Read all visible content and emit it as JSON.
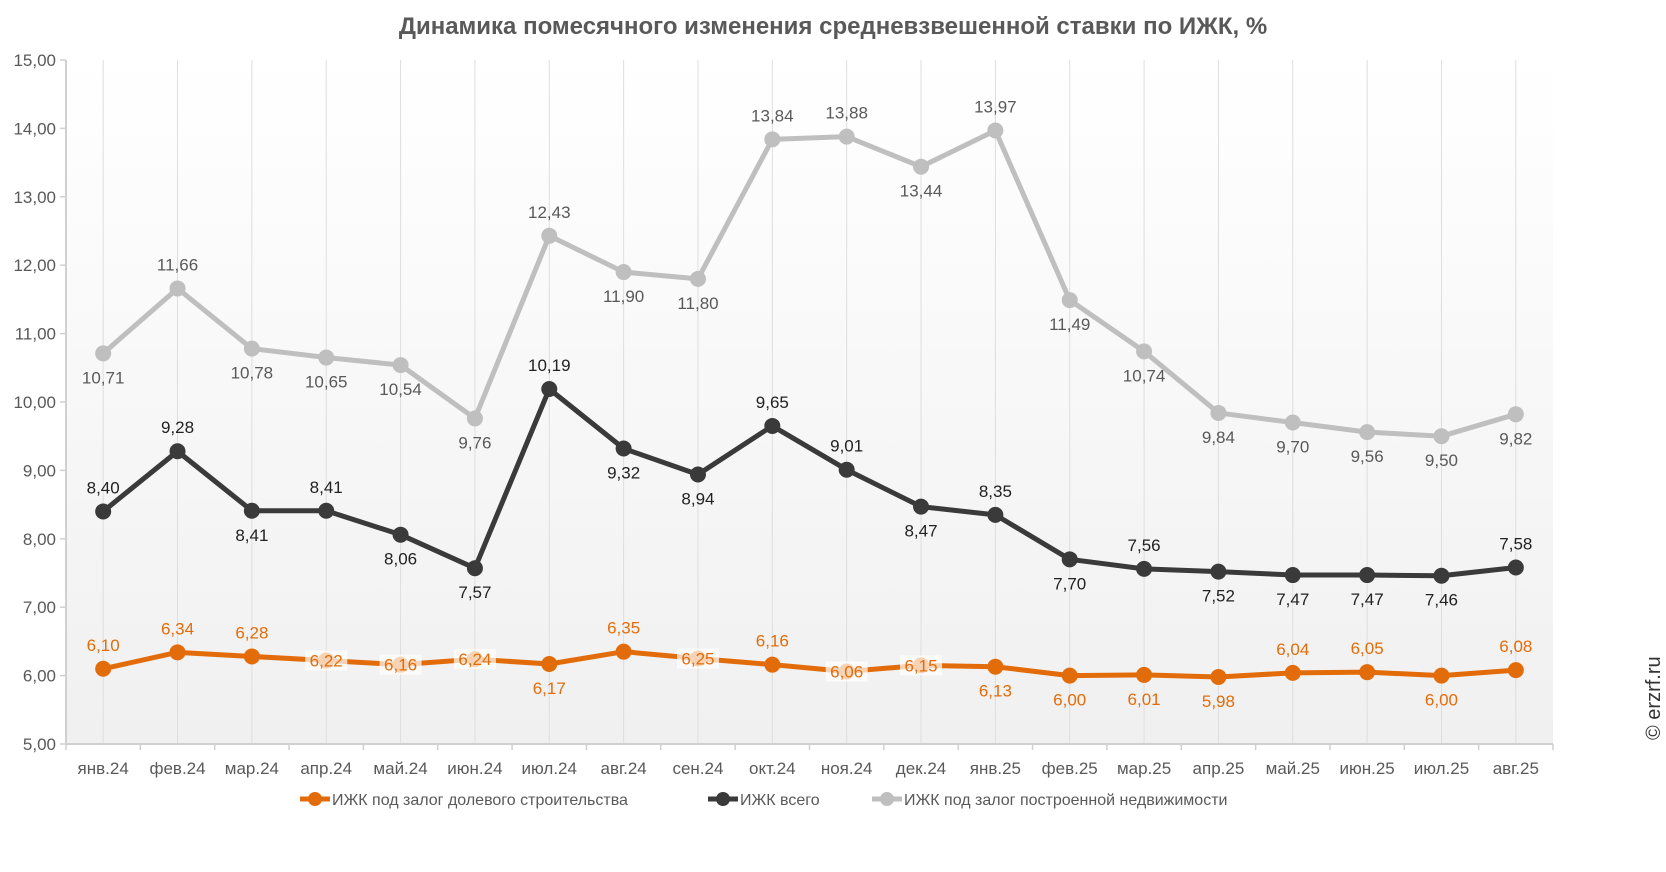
{
  "chart_data": {
    "type": "line",
    "title": "Динамика помесячного изменения средневзвешенной ставки по ИЖК, %",
    "categories": [
      "янв.24",
      "фев.24",
      "мар.24",
      "апр.24",
      "май.24",
      "июн.24",
      "июл.24",
      "авг.24",
      "сен.24",
      "окт.24",
      "ноя.24",
      "дек.24",
      "янв.25",
      "фев.25",
      "мар.25",
      "апр.25",
      "май.25",
      "июн.25",
      "июл.25",
      "авг.25"
    ],
    "ylim": [
      5,
      15
    ],
    "yticks": [
      "5,00",
      "6,00",
      "7,00",
      "8,00",
      "9,00",
      "10,00",
      "11,00",
      "12,00",
      "13,00",
      "14,00",
      "15,00"
    ],
    "grid": "vertical drop lines",
    "legend_position": "bottom",
    "watermark": "© erzrf.ru",
    "series": [
      {
        "name": "ИЖК под залог долевого строительства",
        "color": "#E36C0A",
        "values": [
          6.1,
          6.34,
          6.28,
          6.22,
          6.16,
          6.24,
          6.17,
          6.35,
          6.25,
          6.16,
          6.06,
          6.15,
          6.13,
          6.0,
          6.01,
          5.98,
          6.04,
          6.05,
          6.0,
          6.08
        ]
      },
      {
        "name": "ИЖК всего",
        "color": "#3A3A3A",
        "values": [
          8.4,
          9.28,
          8.41,
          8.41,
          8.06,
          7.57,
          10.19,
          9.32,
          8.94,
          9.65,
          9.01,
          8.47,
          8.35,
          7.7,
          7.56,
          7.52,
          7.47,
          7.47,
          7.46,
          7.58
        ]
      },
      {
        "name": "ИЖК под залог построенной недвижимости",
        "color": "#BFBFBF",
        "values": [
          10.71,
          11.66,
          10.78,
          10.65,
          10.54,
          9.76,
          12.43,
          11.9,
          11.8,
          13.84,
          13.88,
          13.44,
          13.97,
          11.49,
          10.74,
          9.84,
          9.7,
          9.56,
          9.5,
          9.82
        ]
      }
    ]
  }
}
